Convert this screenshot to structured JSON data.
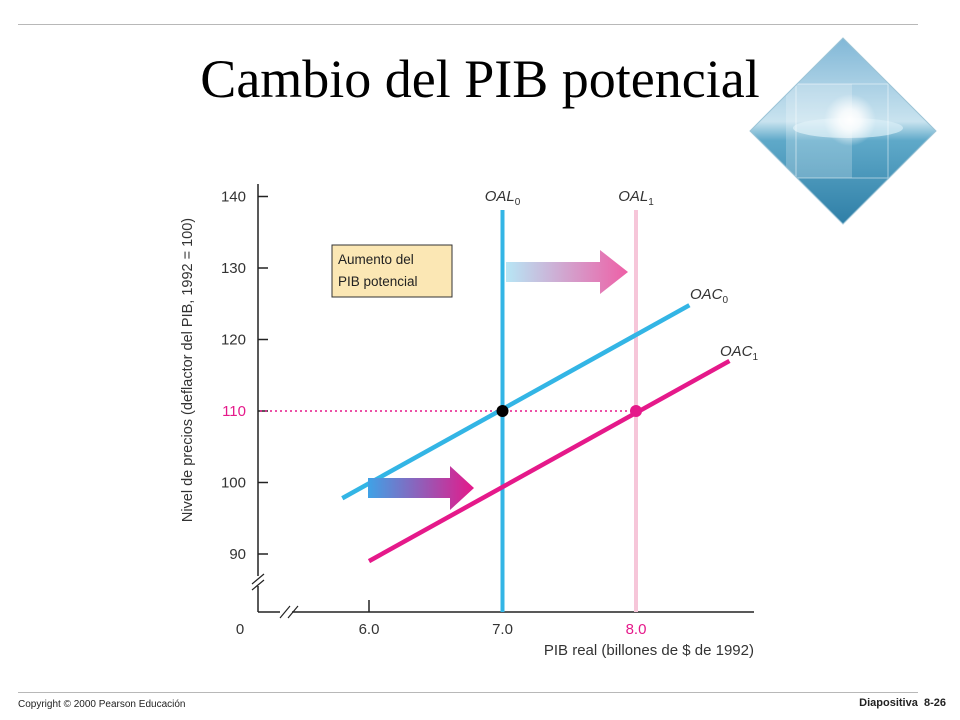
{
  "slide": {
    "title": "Cambio del PIB potencial",
    "copyright": "Copyright © 2000 Pearson Educación",
    "slide_label": "Diapositiva",
    "slide_number": "8-26"
  },
  "colors": {
    "blue": "#33b5e5",
    "magenta": "#e5198a",
    "pink_light": "#f6c6d9",
    "box_fill": "#fbe7b4",
    "axis": "#222222"
  },
  "chart_data": {
    "type": "line",
    "xlabel": "PIB real (billones de $ de 1992)",
    "ylabel": "Nivel de precios (deflactor del PIB, 1992 = 100)",
    "xlim": [
      6.0,
      8.0
    ],
    "ylim": [
      90,
      140
    ],
    "x_ticks": [
      "6.0",
      "7.0",
      "8.0"
    ],
    "y_ticks": [
      "90",
      "100",
      "110",
      "120",
      "130",
      "140"
    ],
    "origin_label": "0",
    "axis_breaks": true,
    "highlighted_y": "110",
    "highlighted_x": "8.0",
    "annotation": [
      "Aumento del",
      "PIB potencial"
    ],
    "vertical_lines": [
      {
        "name": "OAL",
        "sub": "0",
        "x": 7.0,
        "color": "#33b5e5"
      },
      {
        "name": "OAL",
        "sub": "1",
        "x": 8.0,
        "color": "#f6c6d9"
      }
    ],
    "series": [
      {
        "name": "OAC",
        "sub": "0",
        "color": "#33b5e5",
        "points": [
          [
            5.8,
            97.8
          ],
          [
            8.4,
            124.8
          ]
        ]
      },
      {
        "name": "OAC",
        "sub": "1",
        "color": "#e5198a",
        "points": [
          [
            6.0,
            89.0
          ],
          [
            8.7,
            117.0
          ]
        ]
      }
    ],
    "equilibrium_points": [
      {
        "x": 7.0,
        "y": 110,
        "color": "#000000"
      },
      {
        "x": 8.0,
        "y": 110,
        "color": "#e5198a"
      }
    ],
    "reference_line": {
      "y": 110,
      "from_x": 6.0,
      "to_x": 8.0,
      "style": "dotted",
      "color": "#e5198a"
    }
  }
}
